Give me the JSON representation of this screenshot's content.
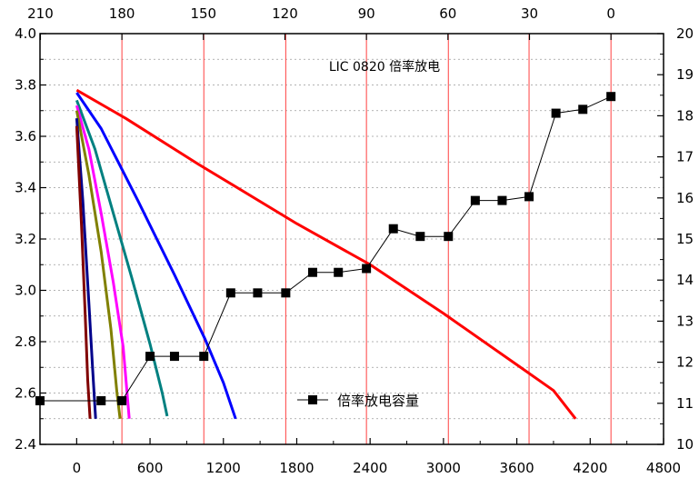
{
  "chart_data": {
    "type": "line",
    "title": "LIC 0820 倍率放电",
    "grid": {
      "horizontal": "dashed",
      "vertical": "red-lines"
    },
    "axes": {
      "bottom": {
        "range": [
          -300,
          4800
        ],
        "ticks": [
          "0",
          "600",
          "1200",
          "1800",
          "2400",
          "3000",
          "3600",
          "4200",
          "4800"
        ],
        "tick_values": [
          0,
          600,
          1200,
          1800,
          2400,
          3000,
          3600,
          4200,
          4800
        ]
      },
      "top": {
        "ticks": [
          "210",
          "180",
          "150",
          "120",
          "90",
          "60",
          "30",
          "0"
        ],
        "tick_values": [
          210,
          180,
          150,
          120,
          90,
          60,
          30,
          0
        ]
      },
      "left": {
        "range": [
          2.4,
          4.0
        ],
        "ticks": [
          "2.4",
          "2.6",
          "2.8",
          "3.0",
          "3.2",
          "3.4",
          "3.6",
          "3.8",
          "4.0"
        ],
        "tick_values": [
          2.4,
          2.6,
          2.8,
          3.0,
          3.2,
          3.4,
          3.6,
          3.8,
          4.0
        ]
      },
      "right": {
        "range": [
          10,
          20
        ],
        "ticks": [
          "10",
          "11",
          "12",
          "13",
          "14",
          "15",
          "16",
          "17",
          "18",
          "19",
          "20"
        ],
        "tick_values": [
          10,
          11,
          12,
          13,
          14,
          15,
          16,
          17,
          18,
          19,
          20
        ]
      }
    },
    "vertical_red_lines_x": [
      370,
      1040,
      1710,
      2370,
      3040,
      3700,
      4370
    ],
    "curves": [
      {
        "color": "#ff0000",
        "points": [
          [
            0,
            3.78
          ],
          [
            400,
            3.67
          ],
          [
            1000,
            3.49
          ],
          [
            1800,
            3.26
          ],
          [
            2400,
            3.1
          ],
          [
            3000,
            2.91
          ],
          [
            3600,
            2.71
          ],
          [
            3900,
            2.61
          ],
          [
            4080,
            2.5
          ]
        ]
      },
      {
        "color": "#0000ff",
        "points": [
          [
            0,
            3.77
          ],
          [
            200,
            3.63
          ],
          [
            500,
            3.35
          ],
          [
            800,
            3.06
          ],
          [
            1050,
            2.81
          ],
          [
            1200,
            2.64
          ],
          [
            1300,
            2.5
          ]
        ]
      },
      {
        "color": "#008080",
        "points": [
          [
            0,
            3.74
          ],
          [
            150,
            3.55
          ],
          [
            300,
            3.3
          ],
          [
            450,
            3.05
          ],
          [
            600,
            2.79
          ],
          [
            700,
            2.6
          ],
          [
            740,
            2.51
          ]
        ]
      },
      {
        "color": "#ff00ff",
        "points": [
          [
            0,
            3.72
          ],
          [
            100,
            3.55
          ],
          [
            200,
            3.3
          ],
          [
            300,
            3.03
          ],
          [
            380,
            2.78
          ],
          [
            430,
            2.5
          ]
        ]
      },
      {
        "color": "#808000",
        "points": [
          [
            0,
            3.7
          ],
          [
            100,
            3.45
          ],
          [
            200,
            3.15
          ],
          [
            280,
            2.85
          ],
          [
            330,
            2.6
          ],
          [
            355,
            2.5
          ]
        ]
      },
      {
        "color": "#00008b",
        "points": [
          [
            0,
            3.67
          ],
          [
            50,
            3.35
          ],
          [
            100,
            2.95
          ],
          [
            130,
            2.7
          ],
          [
            155,
            2.5
          ]
        ]
      },
      {
        "color": "#800000",
        "points": [
          [
            0,
            3.64
          ],
          [
            40,
            3.25
          ],
          [
            70,
            2.9
          ],
          [
            90,
            2.65
          ],
          [
            110,
            2.5
          ]
        ]
      }
    ],
    "capacity_series": {
      "name": "倍率放电容量",
      "color": "#000000",
      "marker": "square",
      "points": [
        [
          -300,
          2.57
        ],
        [
          200,
          2.57
        ],
        [
          370,
          2.57
        ],
        [
          600,
          2.743
        ],
        [
          800,
          2.743
        ],
        [
          1040,
          2.743
        ],
        [
          1260,
          2.99
        ],
        [
          1480,
          2.99
        ],
        [
          1710,
          2.99
        ],
        [
          1930,
          3.07
        ],
        [
          2140,
          3.07
        ],
        [
          2370,
          3.085
        ],
        [
          2590,
          3.24
        ],
        [
          2810,
          3.21
        ],
        [
          3040,
          3.21
        ],
        [
          3260,
          3.35
        ],
        [
          3480,
          3.35
        ],
        [
          3700,
          3.365
        ],
        [
          3920,
          3.69
        ],
        [
          4140,
          3.705
        ],
        [
          4370,
          3.755
        ]
      ]
    }
  }
}
